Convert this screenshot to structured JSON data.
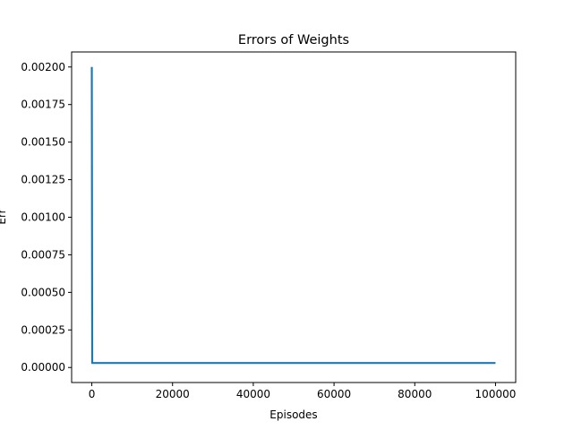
{
  "chart_data": {
    "type": "line",
    "title": "Errors of Weights",
    "xlabel": "Episodes",
    "ylabel": "Err",
    "xlim": [
      -5000,
      105000
    ],
    "ylim": [
      -0.0001,
      0.0021
    ],
    "xticks": [
      0,
      20000,
      40000,
      60000,
      80000,
      100000
    ],
    "xtick_labels": [
      "0",
      "20000",
      "40000",
      "60000",
      "80000",
      "100000"
    ],
    "yticks": [
      0,
      0.00025,
      0.0005,
      0.00075,
      0.001,
      0.00125,
      0.0015,
      0.00175,
      0.002
    ],
    "ytick_labels": [
      "0.00000",
      "0.00025",
      "0.00050",
      "0.00075",
      "0.00100",
      "0.00125",
      "0.00150",
      "0.00175",
      "0.00200"
    ],
    "grid": false,
    "series": [
      {
        "color": "#1f77b4",
        "x": [
          0,
          100,
          300,
          1000,
          2000,
          5000,
          10000,
          20000,
          40000,
          60000,
          80000,
          100000
        ],
        "y": [
          0.002,
          3e-05,
          3e-05,
          3e-05,
          3e-05,
          3e-05,
          3e-05,
          3e-05,
          3e-05,
          3e-05,
          3e-05,
          3e-05
        ]
      }
    ]
  }
}
